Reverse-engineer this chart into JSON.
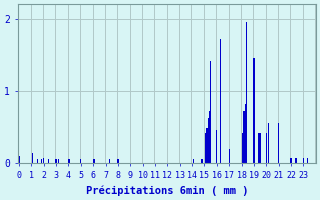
{
  "title": "",
  "xlabel": "Précipitations 6min ( mm )",
  "ylabel": "",
  "background_color": "#d8f5f5",
  "bar_color": "#0000cc",
  "grid_color": "#b0c8c8",
  "axis_color": "#7a9a9a",
  "text_color": "#0000cc",
  "ylim": [
    0,
    2.2
  ],
  "yticks": [
    0,
    1,
    2
  ],
  "num_hours": 24,
  "slots_per_hour": 10,
  "xlabel_fontsize": 7.5,
  "tick_fontsize": 6.0,
  "values": [
    0.1,
    0.0,
    0.0,
    0.0,
    0.0,
    0.0,
    0.0,
    0.0,
    0.0,
    0.0,
    0.0,
    0.14,
    0.0,
    0.0,
    0.0,
    0.06,
    0.0,
    0.0,
    0.06,
    0.0,
    0.07,
    0.0,
    0.0,
    0.0,
    0.06,
    0.0,
    0.0,
    0.0,
    0.0,
    0.0,
    0.06,
    0.0,
    0.06,
    0.0,
    0.0,
    0.0,
    0.0,
    0.0,
    0.0,
    0.0,
    0.06,
    0.06,
    0.0,
    0.0,
    0.0,
    0.0,
    0.0,
    0.0,
    0.0,
    0.0,
    0.06,
    0.0,
    0.0,
    0.0,
    0.0,
    0.0,
    0.0,
    0.0,
    0.0,
    0.0,
    0.06,
    0.06,
    0.0,
    0.0,
    0.0,
    0.0,
    0.0,
    0.0,
    0.0,
    0.0,
    0.0,
    0.0,
    0.0,
    0.06,
    0.0,
    0.0,
    0.0,
    0.0,
    0.0,
    0.0,
    0.06,
    0.0,
    0.0,
    0.0,
    0.0,
    0.0,
    0.0,
    0.0,
    0.0,
    0.0,
    0.0,
    0.0,
    0.0,
    0.0,
    0.0,
    0.0,
    0.0,
    0.0,
    0.0,
    0.0,
    0.0,
    0.0,
    0.0,
    0.0,
    0.0,
    0.0,
    0.0,
    0.0,
    0.0,
    0.0,
    0.0,
    0.0,
    0.0,
    0.0,
    0.0,
    0.0,
    0.0,
    0.0,
    0.0,
    0.0,
    0.0,
    0.0,
    0.0,
    0.0,
    0.0,
    0.0,
    0.0,
    0.0,
    0.0,
    0.0,
    0.0,
    0.0,
    0.0,
    0.0,
    0.0,
    0.0,
    0.0,
    0.0,
    0.0,
    0.0,
    0.0,
    0.06,
    0.0,
    0.0,
    0.0,
    0.0,
    0.0,
    0.0,
    0.06,
    0.0,
    0.0,
    0.42,
    0.48,
    0.62,
    0.72,
    1.42,
    0.0,
    0.0,
    0.0,
    0.0,
    0.46,
    0.0,
    0.0,
    1.72,
    0.0,
    0.0,
    0.0,
    0.0,
    0.0,
    0.0,
    0.2,
    0.0,
    0.0,
    0.0,
    0.0,
    0.0,
    0.0,
    0.0,
    0.0,
    0.0,
    0.0,
    0.42,
    0.72,
    0.82,
    1.95,
    0.0,
    0.0,
    0.0,
    0.0,
    0.0,
    1.45,
    0.0,
    0.0,
    0.0,
    0.42,
    0.42,
    0.0,
    0.0,
    0.0,
    0.0,
    0.42,
    0.0,
    0.55,
    0.0,
    0.0,
    0.0,
    0.0,
    0.0,
    0.0,
    0.0,
    0.55,
    0.0,
    0.0,
    0.0,
    0.0,
    0.0,
    0.0,
    0.0,
    0.0,
    0.0,
    0.07,
    0.0,
    0.0,
    0.0,
    0.07,
    0.0,
    0.0,
    0.0,
    0.0,
    0.0,
    0.07,
    0.0,
    0.0,
    0.07,
    0.0,
    0.0,
    0.0,
    0.0,
    0.0,
    0.0
  ]
}
